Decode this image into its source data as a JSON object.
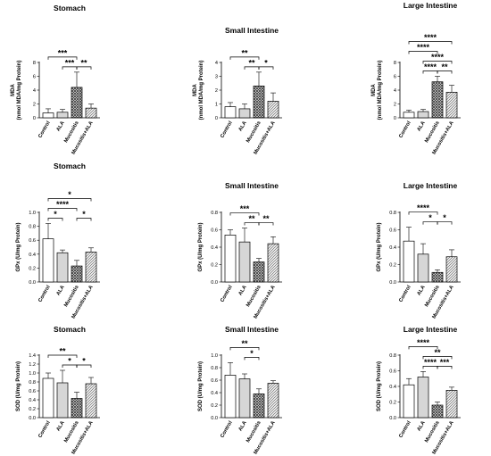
{
  "categories": [
    "Control",
    "ALA",
    "Mucositis",
    "Mucositis+ALA"
  ],
  "fills": [
    "#ffffff",
    "#d6d6d6",
    "crosshatch",
    "diagonal"
  ],
  "chart_data": [
    {
      "type": "bar",
      "title": "Stomach",
      "ylabel": "MDA",
      "ylabel2": "(nmol MDA/mg Protein)",
      "ylim": [
        0,
        8
      ],
      "yticks": [
        "0",
        "2",
        "4",
        "6",
        "8"
      ],
      "categories": [
        "Control",
        "ALA",
        "Mucositis",
        "Mucositis+ALA"
      ],
      "values": [
        0.7,
        0.8,
        4.4,
        1.4
      ],
      "errors": [
        0.6,
        0.4,
        2.2,
        0.6
      ],
      "significance": [
        {
          "from": 0,
          "to": 2,
          "label": "***"
        },
        {
          "from": 1,
          "to": 2,
          "label": "***"
        },
        {
          "from": 2,
          "to": 3,
          "label": "**"
        }
      ]
    },
    {
      "type": "bar",
      "title": "Small Intestine",
      "ylabel": "MDA",
      "ylabel2": "(nmol MDA/mg Protein)",
      "ylim": [
        0,
        4
      ],
      "yticks": [
        "0",
        "1",
        "2",
        "3",
        "4"
      ],
      "categories": [
        "Control",
        "ALA",
        "Mucositis",
        "Mucositis+ALA"
      ],
      "values": [
        0.8,
        0.65,
        2.3,
        1.2
      ],
      "errors": [
        0.3,
        0.35,
        1.0,
        0.6
      ],
      "significance": [
        {
          "from": 0,
          "to": 2,
          "label": "**"
        },
        {
          "from": 1,
          "to": 2,
          "label": "**"
        },
        {
          "from": 2,
          "to": 3,
          "label": "*"
        }
      ]
    },
    {
      "type": "bar",
      "title": "Large Intestine",
      "ylabel": "MDA",
      "ylabel2": "(nmol MDA/mg Protein)",
      "ylim": [
        0,
        8
      ],
      "yticks": [
        "0",
        "2",
        "4",
        "6",
        "8"
      ],
      "categories": [
        "Control",
        "ALA",
        "Mucositis",
        "Mucositis+ALA"
      ],
      "values": [
        0.8,
        0.9,
        5.2,
        3.7
      ],
      "errors": [
        0.3,
        0.3,
        0.8,
        1.0
      ],
      "significance": [
        {
          "from": 0,
          "to": 3,
          "label": "****"
        },
        {
          "from": 1,
          "to": 3,
          "label": "****"
        },
        {
          "from": 0,
          "to": 2,
          "label": "****"
        },
        {
          "from": 2,
          "to": 3,
          "label": "**"
        },
        {
          "from": 1,
          "to": 2,
          "label": "****"
        }
      ]
    },
    {
      "type": "bar",
      "title": "Stomach",
      "ylabel": "GPx (U/mg Protein)",
      "ylabel2": "",
      "ylim": [
        0,
        1.0
      ],
      "yticks": [
        "0.0",
        "0.2",
        "0.4",
        "0.6",
        "0.8",
        "1.0"
      ],
      "categories": [
        "Control",
        "ALA",
        "Mucositis",
        "Mucositis+ALA"
      ],
      "values": [
        0.62,
        0.42,
        0.23,
        0.43
      ],
      "errors": [
        0.22,
        0.04,
        0.08,
        0.06
      ],
      "significance": [
        {
          "from": 0,
          "to": 3,
          "label": "*"
        },
        {
          "from": 0,
          "to": 2,
          "label": "****"
        },
        {
          "from": 0,
          "to": 1,
          "label": "*"
        },
        {
          "from": 2,
          "to": 3,
          "label": "*"
        }
      ]
    },
    {
      "type": "bar",
      "title": "Small Intestine",
      "ylabel": "GPx (U/mg Protein)",
      "ylabel2": "",
      "ylim": [
        0,
        0.8
      ],
      "yticks": [
        "0.0",
        "0.2",
        "0.4",
        "0.6",
        "0.8"
      ],
      "categories": [
        "Control",
        "ALA",
        "Mucositis",
        "Mucositis+ALA"
      ],
      "values": [
        0.54,
        0.46,
        0.23,
        0.44
      ],
      "errors": [
        0.06,
        0.16,
        0.04,
        0.08
      ],
      "significance": [
        {
          "from": 0,
          "to": 2,
          "label": "***"
        },
        {
          "from": 1,
          "to": 2,
          "label": "**"
        },
        {
          "from": 2,
          "to": 3,
          "label": "**"
        }
      ]
    },
    {
      "type": "bar",
      "title": "Large Intestine",
      "ylabel": "GPx (U/mg Protein)",
      "ylabel2": "",
      "ylim": [
        0,
        0.8
      ],
      "yticks": [
        "0.0",
        "0.2",
        "0.4",
        "0.6",
        "0.8"
      ],
      "categories": [
        "Control",
        "ALA",
        "Mucositis",
        "Mucositis+ALA"
      ],
      "values": [
        0.47,
        0.32,
        0.11,
        0.29
      ],
      "errors": [
        0.16,
        0.12,
        0.03,
        0.08
      ],
      "significance": [
        {
          "from": 0,
          "to": 2,
          "label": "****"
        },
        {
          "from": 1,
          "to": 2,
          "label": "*"
        },
        {
          "from": 2,
          "to": 3,
          "label": "*"
        }
      ]
    },
    {
      "type": "bar",
      "title": "Stomach",
      "ylabel": "SOD (U/mg Protein)",
      "ylabel2": "",
      "ylim": [
        0,
        1.4
      ],
      "yticks": [
        "0.0",
        "0.2",
        "0.4",
        "0.6",
        "0.8",
        "1.0",
        "1.2",
        "1.4"
      ],
      "categories": [
        "Control",
        "ALA",
        "Mucositis",
        "Mucositis+ALA"
      ],
      "values": [
        0.88,
        0.78,
        0.43,
        0.76
      ],
      "errors": [
        0.12,
        0.28,
        0.14,
        0.14
      ],
      "significance": [
        {
          "from": 0,
          "to": 2,
          "label": "**"
        },
        {
          "from": 1,
          "to": 2,
          "label": "*"
        },
        {
          "from": 2,
          "to": 3,
          "label": "*"
        }
      ]
    },
    {
      "type": "bar",
      "title": "Small Intestine",
      "ylabel": "SOD (U/mg Protein)",
      "ylabel2": "",
      "ylim": [
        0,
        1.0
      ],
      "yticks": [
        "0.0",
        "0.2",
        "0.4",
        "0.6",
        "0.8",
        "1.0"
      ],
      "categories": [
        "Control",
        "ALA",
        "Mucositis",
        "Mucositis+ALA"
      ],
      "values": [
        0.68,
        0.62,
        0.38,
        0.55
      ],
      "errors": [
        0.2,
        0.08,
        0.08,
        0.04
      ],
      "significance": [
        {
          "from": 0,
          "to": 2,
          "label": "**"
        },
        {
          "from": 1,
          "to": 2,
          "label": "*"
        }
      ]
    },
    {
      "type": "bar",
      "title": "Large Intestine",
      "ylabel": "SOD (U/mg Protein)",
      "ylabel2": "",
      "ylim": [
        0,
        0.8
      ],
      "yticks": [
        "0.0",
        "0.2",
        "0.4",
        "0.6",
        "0.8"
      ],
      "categories": [
        "Control",
        "ALA",
        "Mucositis",
        "Mucositis+ALA"
      ],
      "values": [
        0.42,
        0.52,
        0.16,
        0.35
      ],
      "errors": [
        0.08,
        0.07,
        0.04,
        0.04
      ],
      "significance": [
        {
          "from": 1,
          "to": 3,
          "label": "**"
        },
        {
          "from": 0,
          "to": 2,
          "label": "****"
        },
        {
          "from": 2,
          "to": 3,
          "label": "***"
        },
        {
          "from": 1,
          "to": 2,
          "label": "****"
        }
      ]
    }
  ]
}
